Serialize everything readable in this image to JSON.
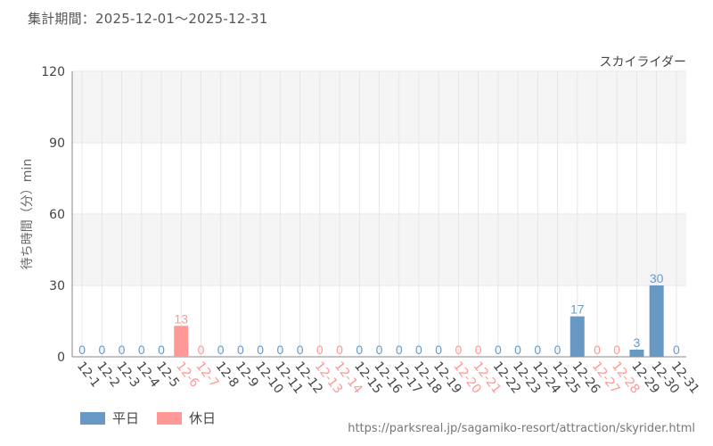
{
  "header": {
    "period": "集計期間：2025-12-01～2025-12-31"
  },
  "colors": {
    "weekday": "#6899c4",
    "holiday": "#ff9896",
    "plot_bg_band": "#f5f5f5",
    "grid": "#e6e6e6"
  },
  "legend": {
    "weekday": "平日",
    "holiday": "休日"
  },
  "source": "https://parksreal.jp/sagamiko-resort/attraction/skyrider.html",
  "chart_data": {
    "type": "bar",
    "title": "スカイライダー",
    "ylabel": "待ち時間（分）min",
    "ylim": [
      0,
      120
    ],
    "yticks": [
      0,
      30,
      60,
      90,
      120
    ],
    "grid": true,
    "legend_position": "bottom-left",
    "categories": [
      "12-1",
      "12-2",
      "12-3",
      "12-4",
      "12-5",
      "12-6",
      "12-7",
      "12-8",
      "12-9",
      "12-10",
      "12-11",
      "12-12",
      "12-13",
      "12-14",
      "12-15",
      "12-16",
      "12-17",
      "12-18",
      "12-19",
      "12-20",
      "12-21",
      "12-22",
      "12-23",
      "12-24",
      "12-25",
      "12-26",
      "12-27",
      "12-28",
      "12-29",
      "12-30",
      "12-31"
    ],
    "values": [
      0,
      0,
      0,
      0,
      0,
      13,
      0,
      0,
      0,
      0,
      0,
      0,
      0,
      0,
      0,
      0,
      0,
      0,
      0,
      0,
      0,
      0,
      0,
      0,
      0,
      17,
      0,
      0,
      3,
      30,
      0
    ],
    "day_type": [
      "weekday",
      "weekday",
      "weekday",
      "weekday",
      "weekday",
      "holiday",
      "holiday",
      "weekday",
      "weekday",
      "weekday",
      "weekday",
      "weekday",
      "holiday",
      "holiday",
      "weekday",
      "weekday",
      "weekday",
      "weekday",
      "weekday",
      "holiday",
      "holiday",
      "weekday",
      "weekday",
      "weekday",
      "weekday",
      "weekday",
      "holiday",
      "holiday",
      "weekday",
      "weekday",
      "weekday"
    ]
  }
}
